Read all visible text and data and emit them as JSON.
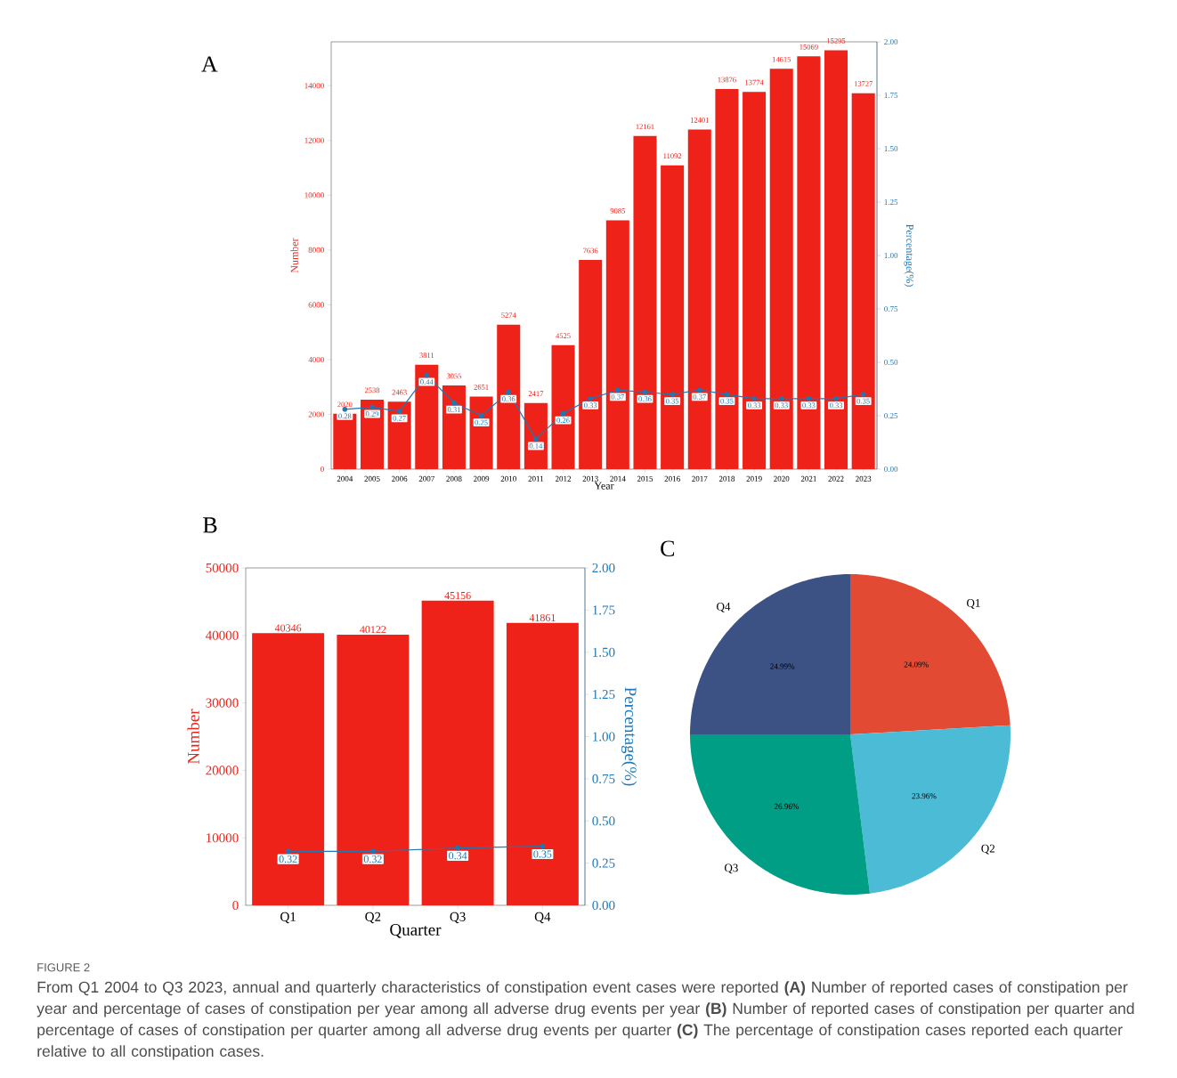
{
  "chart_data": [
    {
      "type": "bar",
      "title": "A",
      "xlabel": "Year",
      "ylabel": "Number",
      "y2label": "Percentage(%)",
      "categories": [
        "2004",
        "2005",
        "2006",
        "2007",
        "2008",
        "2009",
        "2010",
        "2011",
        "2012",
        "2013",
        "2014",
        "2015",
        "2016",
        "2017",
        "2018",
        "2019",
        "2020",
        "2021",
        "2022",
        "2023"
      ],
      "series": [
        {
          "type": "bar",
          "color": "#ee2219",
          "values": [
            2020,
            2538,
            2463,
            3811,
            3055,
            2651,
            5274,
            2417,
            4525,
            7636,
            9085,
            12161,
            11092,
            12401,
            13876,
            13774,
            14615,
            15069,
            15295,
            13727
          ]
        },
        {
          "type": "line",
          "axis": "y2",
          "color": "#1f77b4",
          "marker": "circle",
          "values": [
            0.28,
            0.29,
            0.27,
            0.44,
            0.31,
            0.25,
            0.36,
            0.14,
            0.26,
            0.33,
            0.37,
            0.36,
            0.35,
            0.37,
            0.35,
            0.33,
            0.33,
            0.33,
            0.33,
            0.35
          ]
        }
      ],
      "ylim": [
        0,
        15600
      ],
      "yticks": [
        0,
        2000,
        4000,
        6000,
        8000,
        10000,
        12000,
        14000
      ],
      "y2lim": [
        0,
        2.0
      ],
      "y2ticks": [
        {
          "value": 0,
          "label": "0.00"
        },
        {
          "value": 0.25,
          "label": "0.25"
        },
        {
          "value": 0.5,
          "label": "0.50"
        },
        {
          "value": 0.75,
          "label": "0.75"
        },
        {
          "value": 1,
          "label": "1.00"
        },
        {
          "value": 1.25,
          "label": "1.25"
        },
        {
          "value": 1.5,
          "label": "1.50"
        },
        {
          "value": 1.75,
          "label": "1.75"
        },
        {
          "value": 2,
          "label": "2.00"
        }
      ],
      "data_labels": true,
      "annotations": [
        "FIGURE 2",
        "From Q1 2004 to Q3 2023, annual and quarterly characteristics of constipation event cases were reported **(A)** Number of reported cases of constipation per year and percentage of cases of constipation per year among all adverse drug events per year **(B)** Number of reported cases of constipation per quarter and percentage of cases of constipation per quarter among all adverse drug events per quarter **(C)** The percentage of constipation cases reported each quarter relative to all constipation cases."
      ]
    },
    {
      "type": "bar",
      "title": "B",
      "xlabel": "Quarter",
      "ylabel": "Number",
      "y2label": "Percentage(%)",
      "categories": [
        "Q1",
        "Q2",
        "Q3",
        "Q4"
      ],
      "series": [
        {
          "type": "bar",
          "color": "#ee2219",
          "values": [
            40346,
            40122,
            45156,
            41861
          ]
        },
        {
          "type": "line",
          "axis": "y2",
          "color": "#1f77b4",
          "marker": "circle",
          "values": [
            0.32,
            0.32,
            0.34,
            0.35
          ]
        }
      ],
      "ylim": [
        0,
        50000
      ],
      "yticks": [
        0,
        10000,
        20000,
        30000,
        40000,
        50000
      ],
      "y2lim": [
        0,
        2.0
      ],
      "y2ticks": [
        {
          "value": 0,
          "label": "0.00"
        },
        {
          "value": 0.25,
          "label": "0.25"
        },
        {
          "value": 0.5,
          "label": "0.50"
        },
        {
          "value": 0.75,
          "label": "0.75"
        },
        {
          "value": 1,
          "label": "1.00"
        },
        {
          "value": 1.25,
          "label": "1.25"
        },
        {
          "value": 1.5,
          "label": "1.50"
        },
        {
          "value": 1.75,
          "label": "1.75"
        },
        {
          "value": 2,
          "label": "2.00"
        }
      ],
      "data_labels": true
    },
    {
      "type": "pie",
      "title": "C",
      "categories": [
        "Q1",
        "Q2",
        "Q3",
        "Q4"
      ],
      "values": [
        24.09,
        23.96,
        26.96,
        24.99
      ],
      "colors": [
        "#e34a33",
        "#4bbbd6",
        "#009e84",
        "#3c5284"
      ],
      "value_labels": [
        "24.09%",
        "23.96%",
        "26.96%",
        "24.99%"
      ]
    }
  ]
}
